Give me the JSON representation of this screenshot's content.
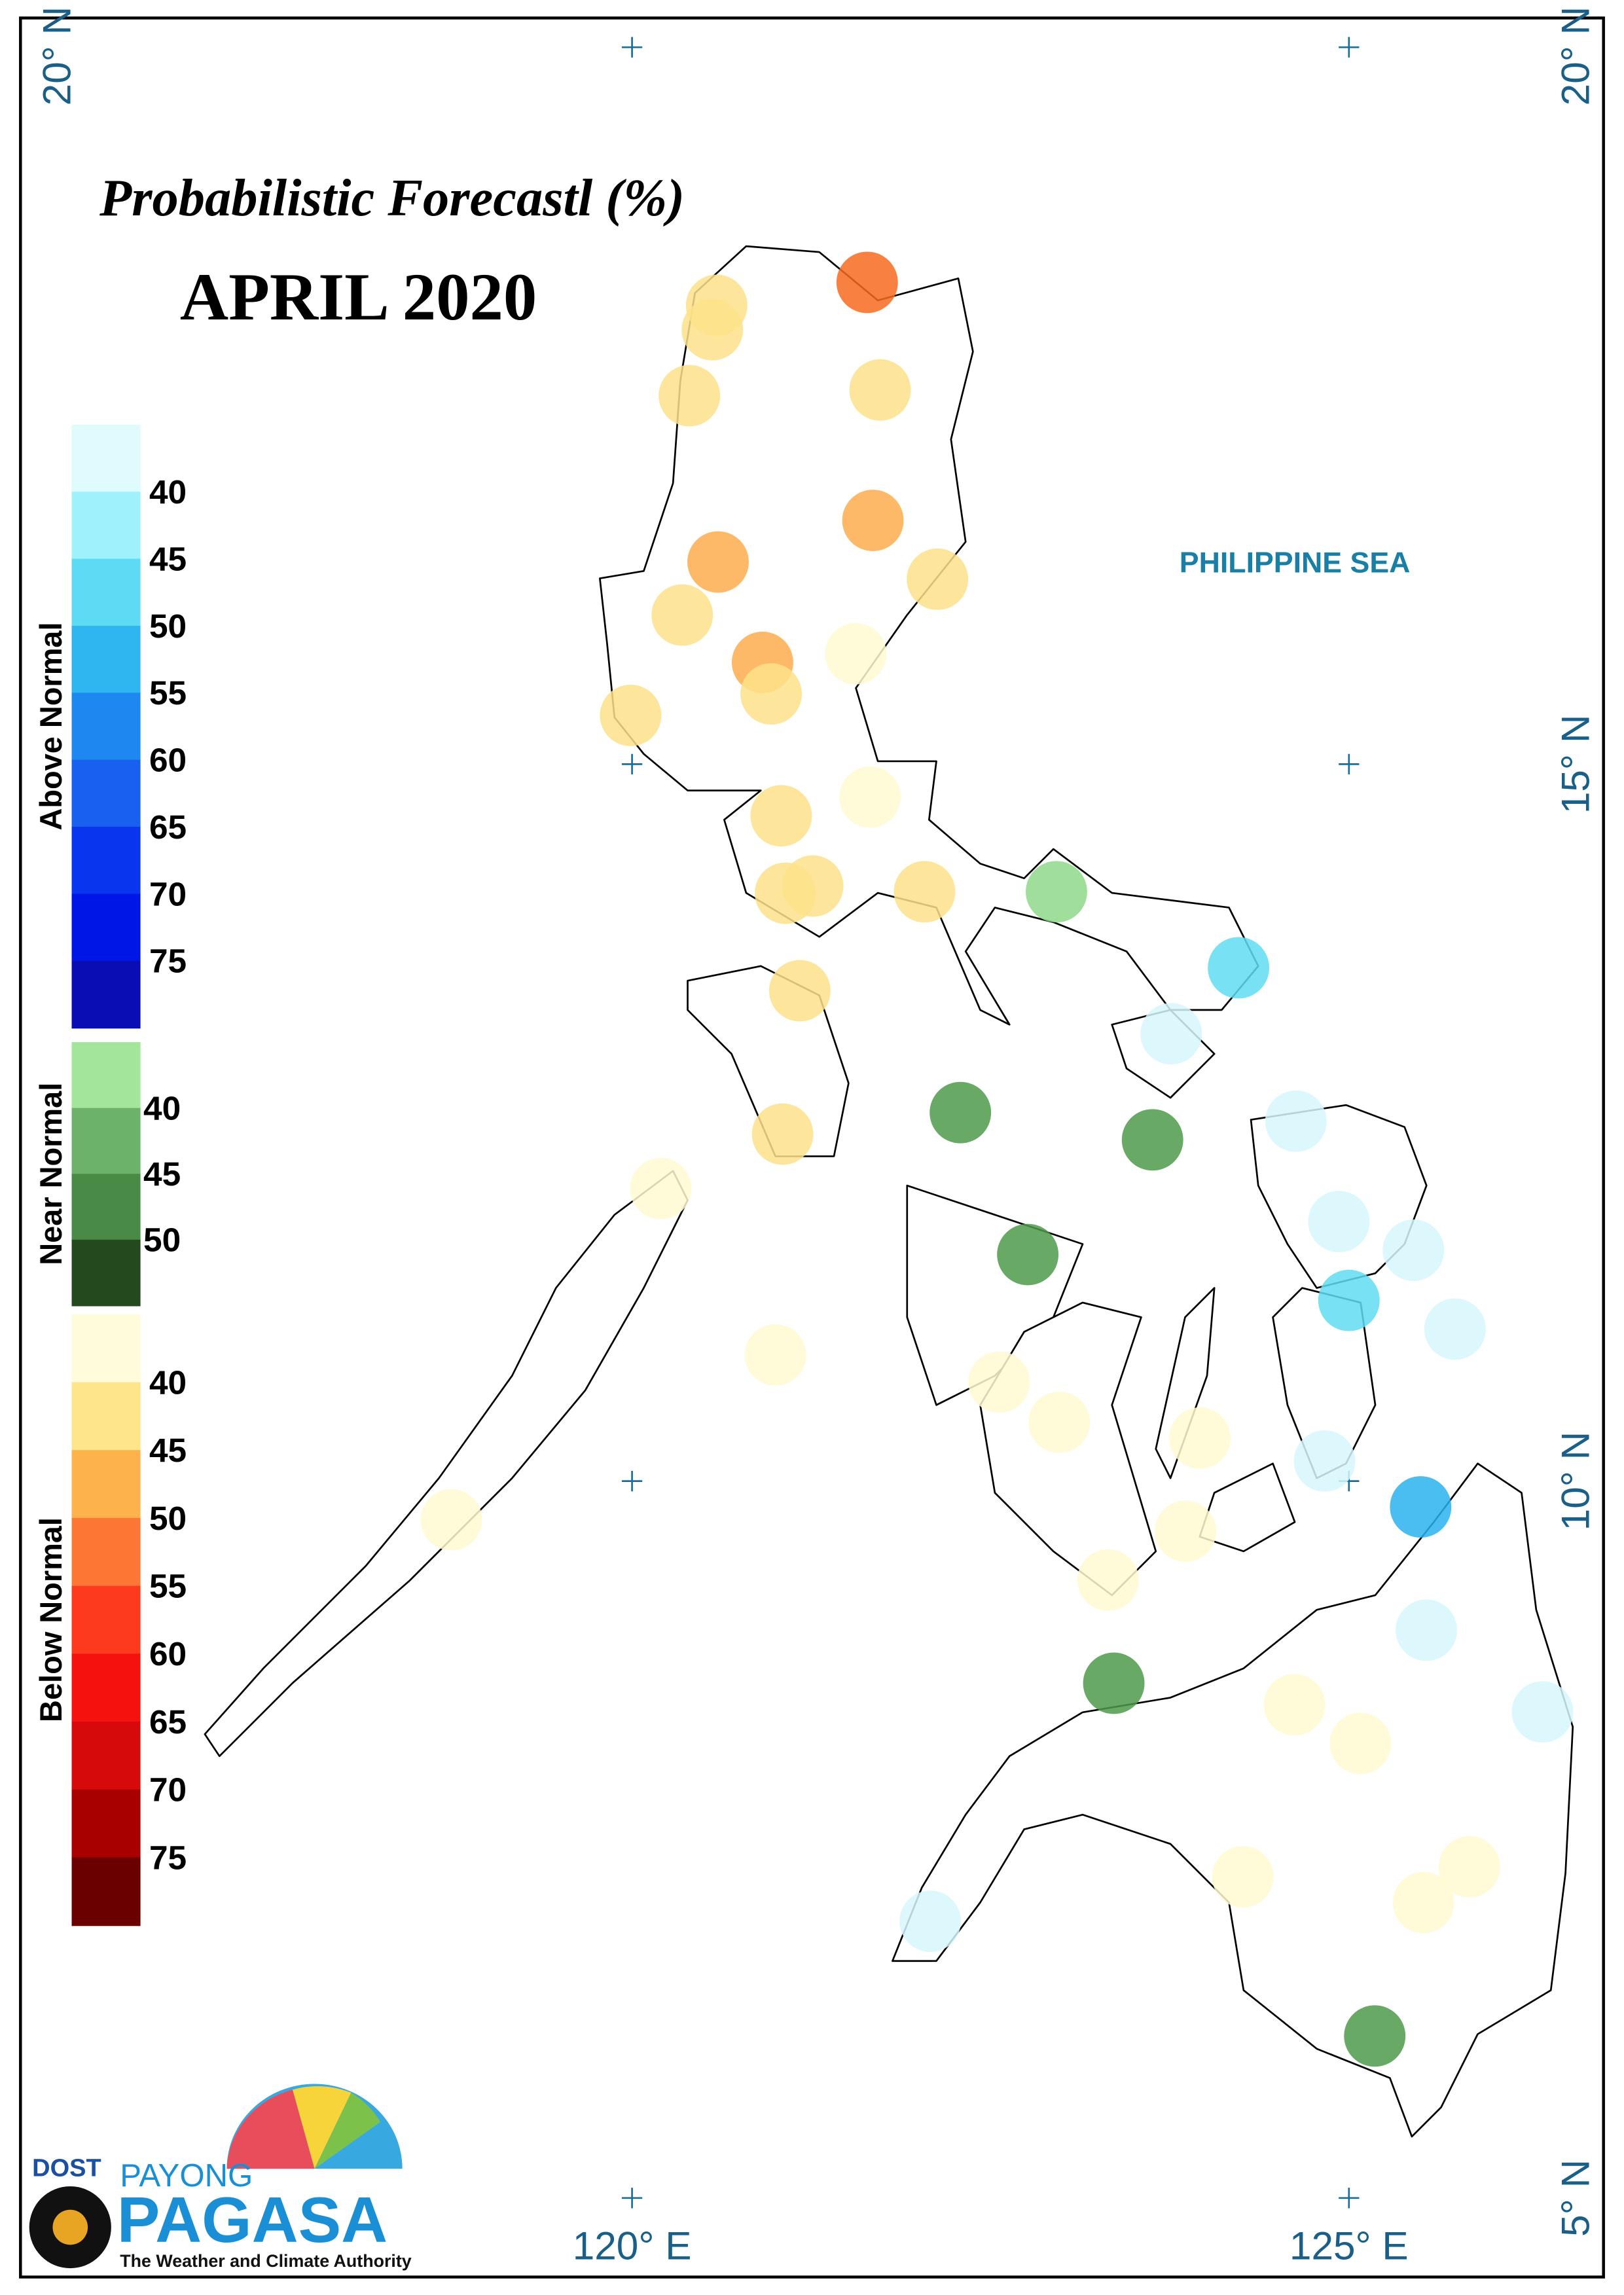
{
  "title": "Probabilistic Forecastl (%)",
  "subtitle": "APRIL 2020",
  "sea_label": "PHILIPPINE SEA",
  "lon_ticks": [
    {
      "value": 120,
      "label": "120° E"
    },
    {
      "value": 125,
      "label": "125° E"
    }
  ],
  "lat_ticks": [
    {
      "value": 20,
      "label": "20° N"
    },
    {
      "value": 15,
      "label": "15° N"
    },
    {
      "value": 10,
      "label": "10° N"
    },
    {
      "value": 5,
      "label": "5° N"
    }
  ],
  "legend": {
    "groups": [
      {
        "name": "Above Normal",
        "colors": [
          "#e0fbfd",
          "#9ff1fb",
          "#5fdaf5",
          "#2fb5f0",
          "#1e88f0",
          "#1a60f0",
          "#0a35ee",
          "#0016e6",
          "#0a0cb4"
        ],
        "labels": [
          40,
          45,
          50,
          55,
          60,
          65,
          70,
          75
        ]
      },
      {
        "name": "Near Normal",
        "colors": [
          "#a3e59a",
          "#6db26a",
          "#4a8a47",
          "#25491f"
        ],
        "labels": [
          40,
          45,
          50
        ]
      },
      {
        "name": "Below Normal",
        "colors": [
          "#fffcdc",
          "#fee48a",
          "#feb24c",
          "#fd7634",
          "#fe3a1e",
          "#f5110e",
          "#d60a0a",
          "#a80000",
          "#6b0000"
        ],
        "labels": [
          40,
          45,
          50,
          55,
          60,
          65,
          70,
          75
        ]
      }
    ]
  },
  "points": [
    {
      "lon": 121.64,
      "lat": 18.36,
      "color": "#f76a1f"
    },
    {
      "lon": 120.59,
      "lat": 18.2,
      "color": "#fde28a"
    },
    {
      "lon": 120.56,
      "lat": 18.03,
      "color": "#fde28a"
    },
    {
      "lon": 120.4,
      "lat": 17.57,
      "color": "#fde28a"
    },
    {
      "lon": 121.73,
      "lat": 17.61,
      "color": "#fde28a"
    },
    {
      "lon": 121.68,
      "lat": 16.7,
      "color": "#fdad4e"
    },
    {
      "lon": 120.6,
      "lat": 16.41,
      "color": "#fdad4e"
    },
    {
      "lon": 122.13,
      "lat": 16.29,
      "color": "#fde28a"
    },
    {
      "lon": 120.35,
      "lat": 16.04,
      "color": "#fde28a"
    },
    {
      "lon": 120.91,
      "lat": 15.71,
      "color": "#fdad4e"
    },
    {
      "lon": 120.97,
      "lat": 15.49,
      "color": "#fde28a"
    },
    {
      "lon": 121.56,
      "lat": 15.77,
      "color": "#fffad2"
    },
    {
      "lon": 119.99,
      "lat": 15.34,
      "color": "#fde28a"
    },
    {
      "lon": 121.04,
      "lat": 14.64,
      "color": "#fde28a"
    },
    {
      "lon": 121.66,
      "lat": 14.77,
      "color": "#fffad2"
    },
    {
      "lon": 121.07,
      "lat": 14.1,
      "color": "#fde28a"
    },
    {
      "lon": 121.26,
      "lat": 14.15,
      "color": "#fde28a"
    },
    {
      "lon": 122.04,
      "lat": 14.11,
      "color": "#fde28a"
    },
    {
      "lon": 122.96,
      "lat": 14.11,
      "color": "#8fd98a"
    },
    {
      "lon": 124.23,
      "lat": 13.58,
      "color": "#62dcf2"
    },
    {
      "lon": 123.76,
      "lat": 13.12,
      "color": "#d6f7fb"
    },
    {
      "lon": 121.17,
      "lat": 13.42,
      "color": "#fde28a"
    },
    {
      "lon": 122.29,
      "lat": 12.57,
      "color": "#4e9a4b"
    },
    {
      "lon": 123.63,
      "lat": 12.38,
      "color": "#4e9a4b"
    },
    {
      "lon": 124.63,
      "lat": 12.51,
      "color": "#d6f7fb"
    },
    {
      "lon": 121.05,
      "lat": 12.42,
      "color": "#fde28a"
    },
    {
      "lon": 120.2,
      "lat": 12.04,
      "color": "#fffad2"
    },
    {
      "lon": 122.76,
      "lat": 11.58,
      "color": "#4e9a4b"
    },
    {
      "lon": 124.93,
      "lat": 11.81,
      "color": "#d6f7fb"
    },
    {
      "lon": 125.45,
      "lat": 11.61,
      "color": "#d6f7fb"
    },
    {
      "lon": 125.0,
      "lat": 11.26,
      "color": "#62dcf2"
    },
    {
      "lon": 125.74,
      "lat": 11.06,
      "color": "#d6f7fb"
    },
    {
      "lon": 121.0,
      "lat": 10.88,
      "color": "#fffad2"
    },
    {
      "lon": 122.56,
      "lat": 10.69,
      "color": "#fffad2"
    },
    {
      "lon": 122.98,
      "lat": 10.41,
      "color": "#fffad2"
    },
    {
      "lon": 123.96,
      "lat": 10.3,
      "color": "#fffad2"
    },
    {
      "lon": 124.83,
      "lat": 10.14,
      "color": "#d6f7fb"
    },
    {
      "lon": 125.5,
      "lat": 9.82,
      "color": "#2ab3ef"
    },
    {
      "lon": 118.74,
      "lat": 9.73,
      "color": "#fffad2"
    },
    {
      "lon": 123.86,
      "lat": 9.65,
      "color": "#fffad2"
    },
    {
      "lon": 123.32,
      "lat": 9.31,
      "color": "#fffad2"
    },
    {
      "lon": 125.54,
      "lat": 8.96,
      "color": "#d6f7fb"
    },
    {
      "lon": 123.36,
      "lat": 8.59,
      "color": "#4e9a4b"
    },
    {
      "lon": 124.62,
      "lat": 8.44,
      "color": "#fffad2"
    },
    {
      "lon": 126.35,
      "lat": 8.39,
      "color": "#d6f7fb"
    },
    {
      "lon": 125.08,
      "lat": 8.17,
      "color": "#fffad2"
    },
    {
      "lon": 125.84,
      "lat": 7.31,
      "color": "#fffad2"
    },
    {
      "lon": 124.26,
      "lat": 7.24,
      "color": "#fffad2"
    },
    {
      "lon": 125.52,
      "lat": 7.06,
      "color": "#fffad2"
    },
    {
      "lon": 122.08,
      "lat": 6.93,
      "color": "#d6f7fb"
    },
    {
      "lon": 125.18,
      "lat": 6.13,
      "color": "#4e9a4b"
    }
  ],
  "logo": {
    "agency": "DOST",
    "brand_top": "PAYONG",
    "brand": "PAGASA",
    "tagline": "The Weather and Climate Authority"
  }
}
